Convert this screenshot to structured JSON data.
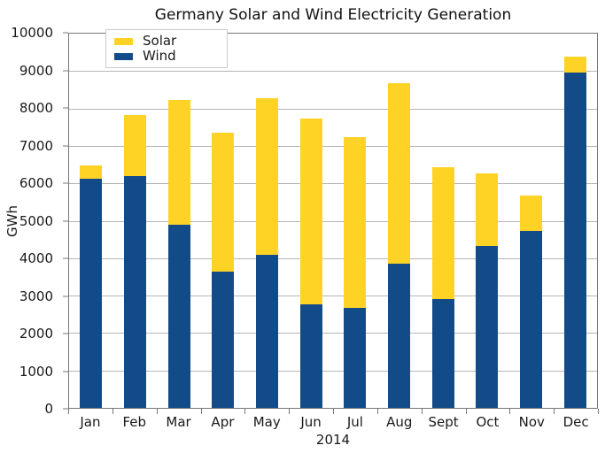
{
  "chart_data": {
    "type": "bar",
    "stacked": true,
    "title": "Germany Solar and Wind Electricity Generation",
    "xlabel": "2014",
    "ylabel": "GWh",
    "ylim": [
      0,
      10000
    ],
    "ytick_step": 1000,
    "y_tick_labels": [
      "0",
      "1000",
      "2000",
      "3000",
      "4000",
      "5000",
      "6000",
      "7000",
      "8000",
      "9000",
      "10000"
    ],
    "grid": "horizontal",
    "legend_position": "upper left",
    "categories": [
      "Jan",
      "Feb",
      "Mar",
      "Apr",
      "May",
      "Jun",
      "Jul",
      "Aug",
      "Sept",
      "Oct",
      "Nov",
      "Dec"
    ],
    "series": [
      {
        "name": "Solar",
        "color": "#FFD325",
        "values": [
          350,
          1620,
          3330,
          3700,
          4180,
          4970,
          4570,
          4820,
          3530,
          1940,
          950,
          440
        ]
      },
      {
        "name": "Wind",
        "color": "#134B88",
        "values": [
          6130,
          6200,
          4900,
          3650,
          4100,
          2760,
          2660,
          3860,
          2900,
          4320,
          4720,
          8950
        ]
      }
    ],
    "stack_order_bottom_to_top": [
      "Wind",
      "Solar"
    ],
    "monthly_totals": [
      6480,
      7820,
      8230,
      7350,
      8280,
      7730,
      7230,
      8680,
      6430,
      6260,
      5670,
      9390
    ]
  },
  "style_colors": {
    "gridline": "#B5B5B5",
    "spine": "#777777",
    "text": "#1A1A1A",
    "legend_border": "#CCCCCC",
    "background": "#FFFFFF"
  }
}
